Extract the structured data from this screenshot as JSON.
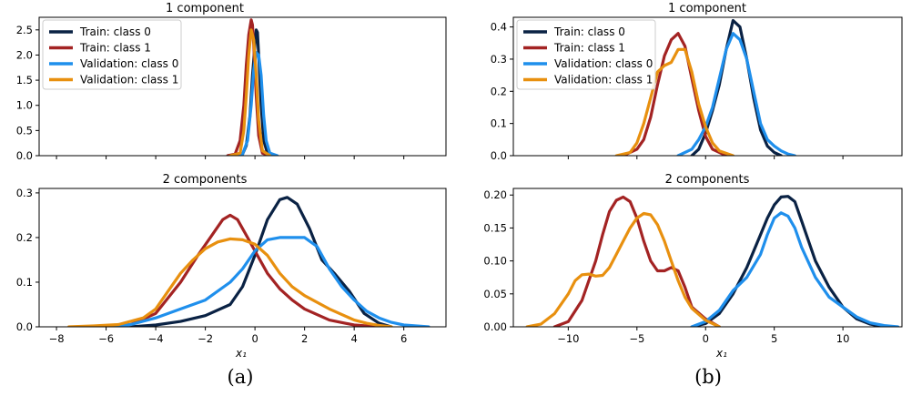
{
  "figure": {
    "captions": [
      "(a)",
      "(b)"
    ],
    "legend_entries": [
      "Train: class 0",
      "Train: class 1",
      "Validation: class 0",
      "Validation: class 1"
    ]
  },
  "colors": {
    "train_class0": "#0a2244",
    "train_class1": "#a32323",
    "validation_class0": "#1f8fec",
    "validation_class1": "#e8900f"
  },
  "chart_data": [
    {
      "type": "line",
      "panel": "a",
      "title": "1 component",
      "xlabel": "",
      "ylabel": "",
      "xlim": [
        -8.7,
        7.7
      ],
      "ylim": [
        0,
        2.75
      ],
      "xticks": [
        -8,
        -6,
        -4,
        -2,
        0,
        2,
        4,
        6
      ],
      "show_xtick_labels": false,
      "yticks": [
        0.0,
        0.5,
        1.0,
        1.5,
        2.0,
        2.5
      ],
      "ytick_labels": [
        "0.0",
        "0.5",
        "1.0",
        "1.5",
        "2.0",
        "2.5"
      ],
      "legend": "top-left",
      "series": [
        {
          "name": "Train: class 0",
          "x": [
            -0.9,
            -0.5,
            -0.35,
            -0.2,
            -0.1,
            0.0,
            0.05,
            0.1,
            0.15,
            0.25,
            0.35,
            0.5,
            0.8
          ],
          "y": [
            0,
            0.03,
            0.2,
            0.8,
            1.6,
            2.2,
            2.5,
            2.45,
            2.0,
            1.0,
            0.3,
            0.05,
            0
          ]
        },
        {
          "name": "Train: class 1",
          "x": [
            -1.1,
            -0.8,
            -0.6,
            -0.45,
            -0.35,
            -0.25,
            -0.15,
            -0.1,
            -0.05,
            0.05,
            0.15,
            0.3,
            0.6
          ],
          "y": [
            0,
            0.03,
            0.3,
            1.0,
            1.8,
            2.4,
            2.7,
            2.6,
            2.2,
            1.2,
            0.4,
            0.05,
            0
          ]
        },
        {
          "name": "Validation: class 0",
          "x": [
            -0.9,
            -0.5,
            -0.3,
            -0.15,
            -0.05,
            0.05,
            0.15,
            0.25,
            0.35,
            0.45,
            0.6,
            0.9
          ],
          "y": [
            0,
            0.03,
            0.3,
            1.0,
            1.7,
            2.05,
            2.0,
            1.6,
            0.8,
            0.3,
            0.05,
            0
          ]
        },
        {
          "name": "Validation: class 1",
          "x": [
            -1.0,
            -0.6,
            -0.45,
            -0.35,
            -0.25,
            -0.15,
            -0.05,
            0.05,
            0.15,
            0.3,
            0.6
          ],
          "y": [
            0,
            0.05,
            0.5,
            1.2,
            2.0,
            2.5,
            2.3,
            1.6,
            0.7,
            0.1,
            0
          ]
        }
      ]
    },
    {
      "type": "line",
      "panel": "a",
      "title": "2 components",
      "xlabel": "x₁",
      "ylabel": "",
      "xlim": [
        -8.7,
        7.7
      ],
      "ylim": [
        0,
        0.31
      ],
      "xticks": [
        -8,
        -6,
        -4,
        -2,
        0,
        2,
        4,
        6
      ],
      "xtick_labels": [
        "−8",
        "−6",
        "−4",
        "−2",
        "0",
        "2",
        "4",
        "6"
      ],
      "yticks": [
        0.0,
        0.1,
        0.2,
        0.3
      ],
      "ytick_labels": [
        "0.0",
        "0.1",
        "0.2",
        "0.3"
      ],
      "series": [
        {
          "name": "Train: class 0",
          "x": [
            -5,
            -4,
            -3,
            -2,
            -1,
            -0.5,
            0,
            0.5,
            1,
            1.3,
            1.7,
            2.2,
            2.7,
            3.2,
            3.8,
            4.4,
            5,
            5.5
          ],
          "y": [
            0,
            0.004,
            0.012,
            0.025,
            0.05,
            0.09,
            0.16,
            0.24,
            0.285,
            0.29,
            0.275,
            0.22,
            0.15,
            0.12,
            0.08,
            0.03,
            0.008,
            0
          ]
        },
        {
          "name": "Train: class 1",
          "x": [
            -6,
            -5,
            -4,
            -3,
            -2.3,
            -1.8,
            -1.3,
            -1,
            -0.7,
            -0.3,
            0,
            0.5,
            1,
            1.5,
            2,
            3,
            4,
            5
          ],
          "y": [
            0,
            0.005,
            0.03,
            0.1,
            0.16,
            0.2,
            0.24,
            0.25,
            0.24,
            0.2,
            0.17,
            0.12,
            0.085,
            0.06,
            0.04,
            0.015,
            0.004,
            0
          ]
        },
        {
          "name": "Validation: class 0",
          "x": [
            -6,
            -5,
            -4,
            -3,
            -2,
            -1,
            -0.5,
            0,
            0.5,
            1,
            1.5,
            2,
            2.5,
            3,
            3.5,
            4,
            4.5,
            5,
            5.5,
            6,
            7
          ],
          "y": [
            0,
            0.005,
            0.02,
            0.04,
            0.06,
            0.1,
            0.13,
            0.17,
            0.195,
            0.2,
            0.2,
            0.2,
            0.18,
            0.13,
            0.09,
            0.06,
            0.035,
            0.02,
            0.01,
            0.004,
            0
          ]
        },
        {
          "name": "Validation: class 1",
          "x": [
            -7.5,
            -6.5,
            -5.5,
            -4.5,
            -4,
            -3.5,
            -3,
            -2.5,
            -2,
            -1.5,
            -1,
            -0.5,
            0,
            0.5,
            1,
            1.5,
            2,
            3,
            4,
            4.5,
            5,
            5.5
          ],
          "y": [
            0,
            0.002,
            0.005,
            0.02,
            0.04,
            0.08,
            0.12,
            0.15,
            0.175,
            0.19,
            0.197,
            0.195,
            0.185,
            0.16,
            0.12,
            0.09,
            0.07,
            0.04,
            0.015,
            0.008,
            0.003,
            0
          ]
        }
      ]
    },
    {
      "type": "line",
      "panel": "b",
      "title": "1 component",
      "xlabel": "",
      "ylabel": "",
      "xlim": [
        -14.0,
        14.3
      ],
      "ylim": [
        0,
        0.43
      ],
      "xticks": [
        -10,
        -5,
        0,
        5,
        10
      ],
      "show_xtick_labels": false,
      "yticks": [
        0.0,
        0.1,
        0.2,
        0.3,
        0.4
      ],
      "ytick_labels": [
        "0.0",
        "0.1",
        "0.2",
        "0.3",
        "0.4"
      ],
      "legend": "top-left",
      "series": [
        {
          "name": "Train: class 0",
          "x": [
            -1,
            -0.5,
            0,
            0.5,
            1,
            1.5,
            2,
            2.5,
            3,
            3.5,
            4,
            4.5,
            5,
            5.5
          ],
          "y": [
            0,
            0.02,
            0.07,
            0.14,
            0.22,
            0.33,
            0.42,
            0.4,
            0.3,
            0.18,
            0.08,
            0.03,
            0.01,
            0
          ]
        },
        {
          "name": "Train: class 1",
          "x": [
            -6,
            -5,
            -4.5,
            -4,
            -3.5,
            -3,
            -2.5,
            -2,
            -1.5,
            -1,
            -0.5,
            0,
            0.5,
            1.5
          ],
          "y": [
            0,
            0.02,
            0.05,
            0.12,
            0.22,
            0.31,
            0.36,
            0.38,
            0.34,
            0.24,
            0.14,
            0.06,
            0.02,
            0
          ]
        },
        {
          "name": "Validation: class 0",
          "x": [
            -2,
            -1,
            -0.5,
            0,
            0.5,
            1,
            1.5,
            2,
            2.5,
            3,
            3.5,
            4,
            4.5,
            5,
            5.5,
            6,
            6.5
          ],
          "y": [
            0,
            0.02,
            0.05,
            0.09,
            0.15,
            0.24,
            0.33,
            0.38,
            0.36,
            0.3,
            0.2,
            0.1,
            0.05,
            0.03,
            0.015,
            0.005,
            0
          ]
        },
        {
          "name": "Validation: class 1",
          "x": [
            -6.5,
            -5.5,
            -5,
            -4.5,
            -4,
            -3.5,
            -3,
            -2.5,
            -2,
            -1.5,
            -1,
            -0.5,
            0,
            0.5,
            1,
            2
          ],
          "y": [
            0,
            0.01,
            0.04,
            0.1,
            0.18,
            0.26,
            0.28,
            0.29,
            0.33,
            0.33,
            0.26,
            0.16,
            0.09,
            0.04,
            0.015,
            0
          ]
        }
      ]
    },
    {
      "type": "line",
      "panel": "b",
      "title": "2 components",
      "xlabel": "x₁",
      "ylabel": "",
      "xlim": [
        -14.0,
        14.3
      ],
      "ylim": [
        0,
        0.21
      ],
      "xticks": [
        -10,
        -5,
        0,
        5,
        10
      ],
      "xtick_labels": [
        "−10",
        "−5",
        "0",
        "5",
        "10"
      ],
      "yticks": [
        0.0,
        0.05,
        0.1,
        0.15,
        0.2
      ],
      "ytick_labels": [
        "0.00",
        "0.05",
        "0.10",
        "0.15",
        "0.20"
      ],
      "series": [
        {
          "name": "Train: class 0",
          "x": [
            -1,
            0,
            1,
            2,
            3,
            4,
            4.5,
            5,
            5.5,
            6,
            6.5,
            7,
            8,
            9,
            10,
            11,
            12,
            13
          ],
          "y": [
            0,
            0.005,
            0.02,
            0.05,
            0.09,
            0.14,
            0.165,
            0.185,
            0.197,
            0.198,
            0.19,
            0.16,
            0.1,
            0.06,
            0.03,
            0.012,
            0.004,
            0
          ]
        },
        {
          "name": "Train: class 1",
          "x": [
            -11,
            -10,
            -9,
            -8,
            -7.5,
            -7,
            -6.5,
            -6,
            -5.5,
            -5,
            -4.5,
            -4,
            -3.5,
            -3,
            -2.5,
            -2,
            -1.5,
            -1,
            0,
            1
          ],
          "y": [
            0,
            0.008,
            0.04,
            0.1,
            0.14,
            0.175,
            0.192,
            0.197,
            0.19,
            0.165,
            0.13,
            0.1,
            0.085,
            0.085,
            0.09,
            0.085,
            0.06,
            0.03,
            0.012,
            0
          ]
        },
        {
          "name": "Validation: class 0",
          "x": [
            -1,
            0,
            1,
            2,
            3,
            4,
            4.5,
            5,
            5.5,
            6,
            6.5,
            7,
            8,
            9,
            10,
            11,
            12,
            13,
            14
          ],
          "y": [
            0,
            0.008,
            0.025,
            0.055,
            0.075,
            0.11,
            0.14,
            0.165,
            0.173,
            0.168,
            0.15,
            0.12,
            0.075,
            0.045,
            0.03,
            0.015,
            0.006,
            0.002,
            0
          ]
        },
        {
          "name": "Validation: class 1",
          "x": [
            -13,
            -12,
            -11,
            -10,
            -9.5,
            -9,
            -8.5,
            -8,
            -7.5,
            -7,
            -6.5,
            -6,
            -5.5,
            -5,
            -4.5,
            -4,
            -3.5,
            -3,
            -2.5,
            -2,
            -1.5,
            -1,
            0,
            1
          ],
          "y": [
            0,
            0.004,
            0.02,
            0.05,
            0.07,
            0.079,
            0.08,
            0.077,
            0.078,
            0.09,
            0.11,
            0.13,
            0.15,
            0.165,
            0.172,
            0.17,
            0.155,
            0.13,
            0.1,
            0.07,
            0.045,
            0.028,
            0.01,
            0
          ]
        }
      ]
    }
  ]
}
